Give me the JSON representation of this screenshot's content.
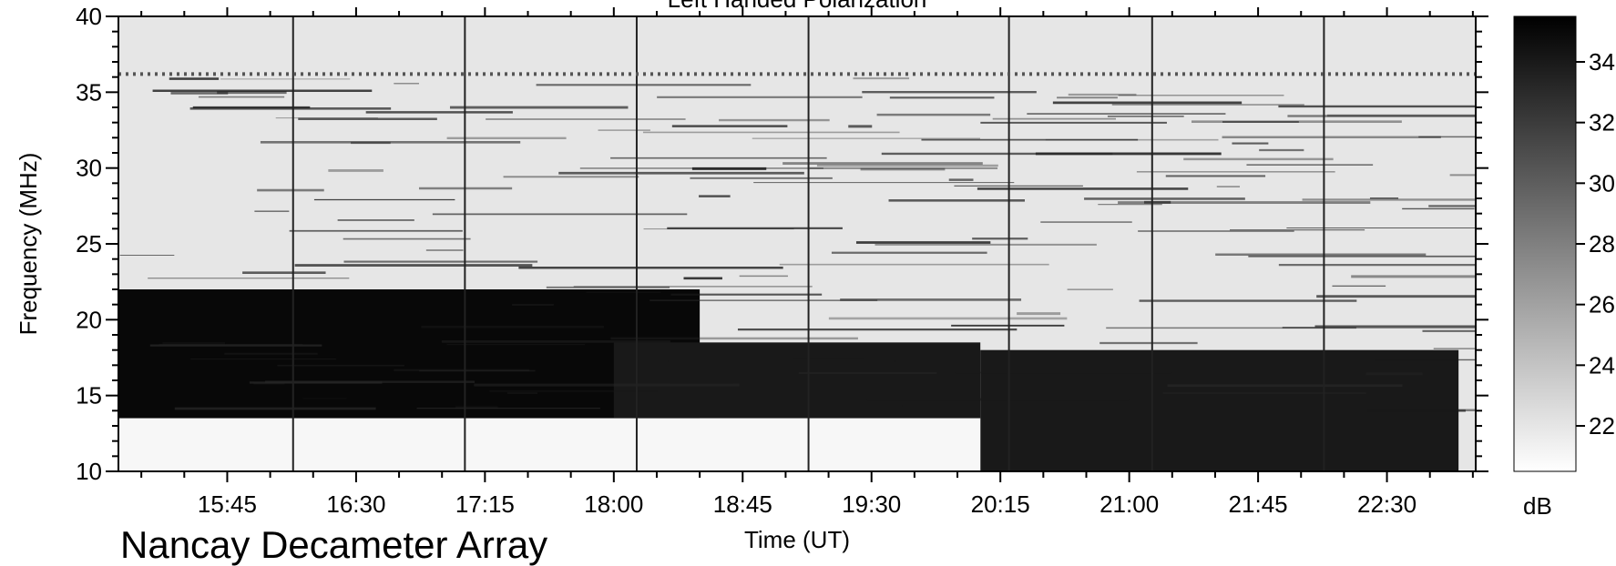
{
  "chart_data": {
    "type": "heatmap",
    "title": "Left Handed Polarization",
    "xlabel": "Time (UT)",
    "ylabel": "Frequency (MHz)",
    "xlim_minutes_ut": [
      907,
      1381
    ],
    "ylim": [
      10,
      40
    ],
    "x_ticks": [
      "15:45",
      "16:30",
      "17:15",
      "18:00",
      "18:45",
      "19:30",
      "20:15",
      "21:00",
      "21:45",
      "22:30"
    ],
    "x_tick_minutes_ut": [
      945,
      990,
      1035,
      1080,
      1125,
      1170,
      1215,
      1260,
      1305,
      1350
    ],
    "y_ticks": [
      10,
      15,
      20,
      25,
      30,
      35,
      40
    ],
    "colorbar": {
      "label": "dB",
      "ticks": [
        22,
        24,
        26,
        28,
        30,
        32,
        34
      ],
      "range": [
        20.5,
        35.5
      ],
      "colormap": "grayscale, white = low, black = high"
    },
    "background_level_db": 22,
    "emission_bands": [
      {
        "t_start": "15:07",
        "t_end": "18:30",
        "f_low": 13.5,
        "f_high": 22,
        "level_db": 35
      },
      {
        "t_start": "18:00",
        "t_end": "20:08",
        "f_low": 13.5,
        "f_high": 18.5,
        "level_db": 34
      },
      {
        "t_start": "20:08",
        "t_end": "22:55",
        "f_low": 10,
        "f_high": 18,
        "level_db": 34
      },
      {
        "t_start": "15:07",
        "t_end": "20:08",
        "f_low": 10,
        "f_high": 13.5,
        "level_db": 21
      }
    ],
    "persistent_line_mhz": 36.2,
    "vertical_lines_ut": [
      "16:08",
      "17:08",
      "18:08",
      "19:08",
      "20:18",
      "21:08",
      "22:08"
    ]
  },
  "footer": {
    "instrument": "Nancay Decameter Array"
  },
  "colors": {
    "background": "#ffffff",
    "axis": "#000000",
    "spectrogram_bg": "#d3d3d3"
  }
}
